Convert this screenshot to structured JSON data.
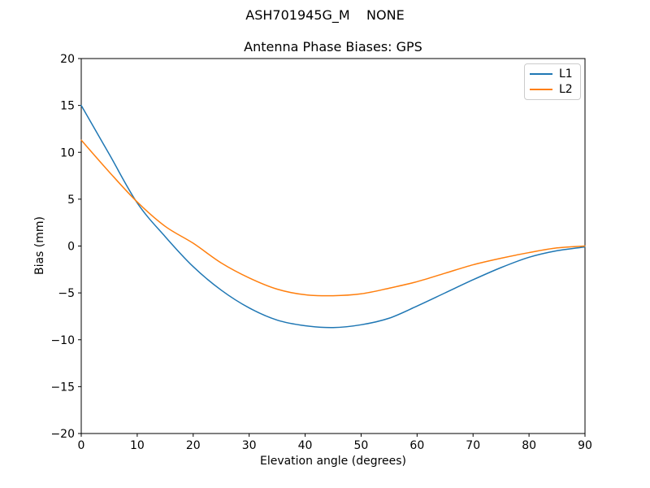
{
  "figure": {
    "suptitle": "ASH701945G_M    NONE"
  },
  "chart_data": {
    "type": "line",
    "title": "Antenna Phase Biases: GPS",
    "xlabel": "Elevation angle (degrees)",
    "ylabel": "Bias (mm)",
    "xlim": [
      0,
      90
    ],
    "ylim": [
      -20,
      20
    ],
    "xticks": [
      0,
      10,
      20,
      30,
      40,
      50,
      60,
      70,
      80,
      90
    ],
    "yticks": [
      -20,
      -15,
      -10,
      -5,
      0,
      5,
      10,
      15,
      20
    ],
    "grid": false,
    "legend": {
      "position": "upper right",
      "entries": [
        "L1",
        "L2"
      ]
    },
    "x": [
      0,
      5,
      10,
      15,
      20,
      25,
      30,
      35,
      40,
      45,
      50,
      55,
      60,
      65,
      70,
      75,
      80,
      85,
      90
    ],
    "series": [
      {
        "name": "L1",
        "color": "#1f77b4",
        "values": [
          15.0,
          9.8,
          4.6,
          1.0,
          -2.2,
          -4.7,
          -6.6,
          -7.9,
          -8.5,
          -8.7,
          -8.4,
          -7.7,
          -6.4,
          -5.0,
          -3.6,
          -2.3,
          -1.2,
          -0.5,
          -0.1
        ]
      },
      {
        "name": "L2",
        "color": "#ff7f0e",
        "values": [
          11.3,
          7.9,
          4.7,
          2.1,
          0.3,
          -1.8,
          -3.4,
          -4.6,
          -5.2,
          -5.3,
          -5.1,
          -4.5,
          -3.8,
          -2.9,
          -2.0,
          -1.3,
          -0.7,
          -0.2,
          0.0
        ]
      }
    ]
  }
}
